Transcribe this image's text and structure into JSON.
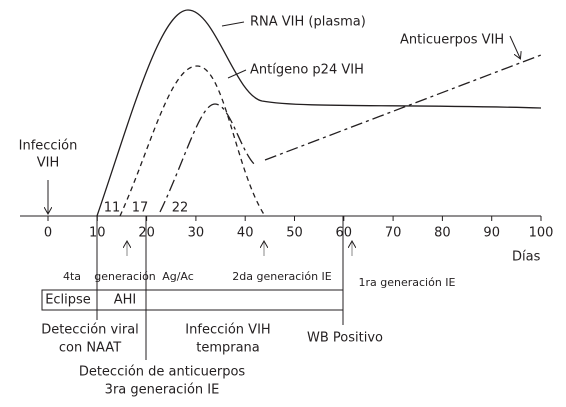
{
  "labels": {
    "infection": [
      "Infección",
      "VIH"
    ],
    "rna": "RNA VIH (plasma)",
    "p24": "Antígeno p24 VIH",
    "antibodies": "Anticuerpos VIH",
    "x_axis": "Días"
  },
  "day_marks": [
    "11",
    "17",
    "22"
  ],
  "x_ticks": [
    "0",
    "10",
    "20",
    "30",
    "40",
    "50",
    "60",
    "70",
    "80",
    "90",
    "100"
  ],
  "tests": {
    "fourth_a": "4ta",
    "fourth_b": "generación",
    "fourth_c": "Ag/Ac",
    "second": "2da generación IE",
    "first": "1ra generación IE"
  },
  "phases": {
    "eclipse": "Eclipse",
    "ahi": "AHI"
  },
  "bottom": {
    "naat": [
      "Detección viral",
      "con NAAT"
    ],
    "early": [
      "Infección VIH",
      "temprana"
    ],
    "wb": "WB Positivo",
    "antibody": [
      "Detección de anticuerpos",
      "3ra generación IE"
    ]
  }
}
